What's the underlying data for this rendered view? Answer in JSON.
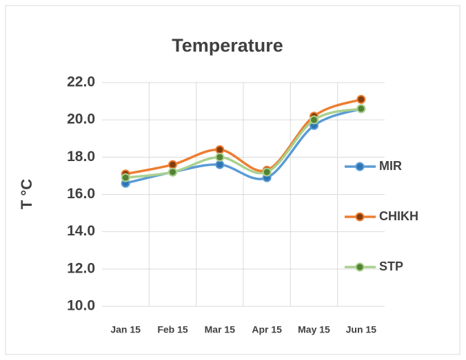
{
  "chart_data": {
    "type": "line",
    "title": "Temperature",
    "y_label": "T °C",
    "categories": [
      "Jan 15",
      "Feb 15",
      "Mar 15",
      "Apr 15",
      "May 15",
      "Jun 15"
    ],
    "series": [
      {
        "name": "MIR",
        "color": "#5b9bd5",
        "marker_color": "#2e75b6",
        "values": [
          16.6,
          17.2,
          17.6,
          16.9,
          19.7,
          20.6
        ]
      },
      {
        "name": "CHIKH",
        "color": "#ed7d31",
        "marker_color": "#843c0c",
        "values": [
          17.1,
          17.6,
          18.4,
          17.3,
          20.2,
          21.1
        ]
      },
      {
        "name": "STP",
        "color": "#a9d18e",
        "marker_color": "#548235",
        "values": [
          16.9,
          17.2,
          18.0,
          17.2,
          20.0,
          20.6
        ]
      }
    ],
    "ylim": [
      10,
      22
    ],
    "yticks": [
      {
        "value": 10,
        "label": "10.0"
      },
      {
        "value": 12,
        "label": "12.0"
      },
      {
        "value": 14,
        "label": "14.0"
      },
      {
        "value": 16,
        "label": "16.0"
      },
      {
        "value": 18,
        "label": "18.0"
      },
      {
        "value": 20,
        "label": "20.0"
      },
      {
        "value": 22,
        "label": "22.0"
      }
    ],
    "grid": true,
    "smooth": true,
    "legend": "right"
  }
}
